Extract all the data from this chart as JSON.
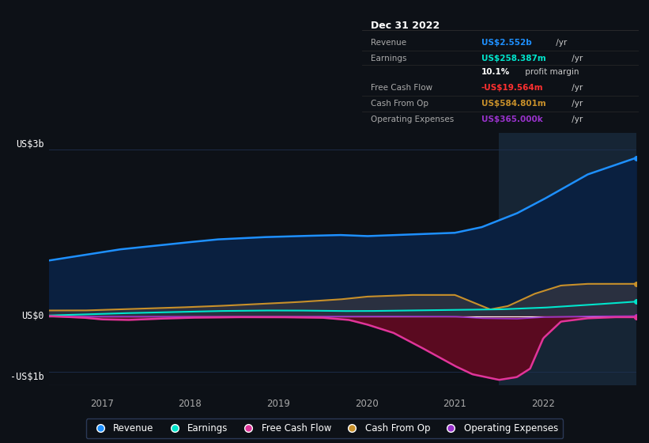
{
  "bg_color": "#0d1117",
  "plot_bg_color": "#0d1b2a",
  "highlight_bg_color": "#162535",
  "grid_color": "#1e3050",
  "ylabel_3b": "US$3b",
  "ylabel_0": "US$0",
  "ylabel_neg1b": "-US$1b",
  "x_labels": [
    "2017",
    "2018",
    "2019",
    "2020",
    "2021",
    "2022"
  ],
  "ylim": [
    -1250000000.0,
    3300000000.0
  ],
  "xlim_start": 2016.4,
  "xlim_end": 2023.05,
  "revenue_color": "#1e90ff",
  "earnings_color": "#00e5cc",
  "fcf_color": "#e0359a",
  "cashfromop_color": "#c8902a",
  "opex_color": "#9932cc",
  "revenue_fill_color": "#0a2040",
  "fcf_fill_color": "#5a0a20",
  "cashfromop_fill_color": "#2a3040",
  "info_box_bg": "#0a0a0a",
  "info_box_border": "#444444",
  "info_title": "Dec 31 2022",
  "info_rows": [
    {
      "label": "Revenue",
      "val_colored": "US$2.552b",
      "val_suffix": " /yr",
      "val_color": "#1e90ff"
    },
    {
      "label": "Earnings",
      "val_colored": "US$258.387m",
      "val_suffix": " /yr",
      "val_color": "#00e5cc"
    },
    {
      "label": "",
      "val_colored": "10.1%",
      "val_suffix": " profit margin",
      "val_color": "#ffffff"
    },
    {
      "label": "Free Cash Flow",
      "val_colored": "-US$19.564m",
      "val_suffix": " /yr",
      "val_color": "#ff3030"
    },
    {
      "label": "Cash From Op",
      "val_colored": "US$584.801m",
      "val_suffix": " /yr",
      "val_color": "#c8902a"
    },
    {
      "label": "Operating Expenses",
      "val_colored": "US$365.000k",
      "val_suffix": " /yr",
      "val_color": "#9932cc"
    }
  ],
  "legend": [
    {
      "label": "Revenue",
      "color": "#1e90ff"
    },
    {
      "label": "Earnings",
      "color": "#00e5cc"
    },
    {
      "label": "Free Cash Flow",
      "color": "#e0359a"
    },
    {
      "label": "Cash From Op",
      "color": "#c8902a"
    },
    {
      "label": "Operating Expenses",
      "color": "#9932cc"
    }
  ]
}
